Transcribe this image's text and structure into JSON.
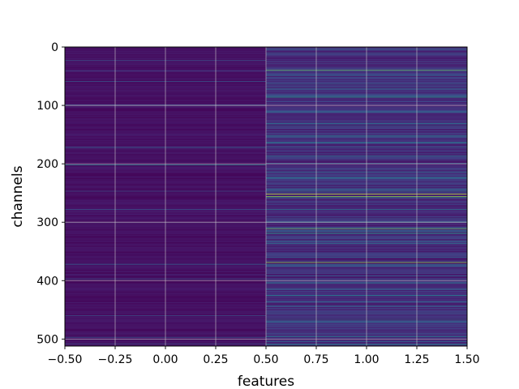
{
  "chart_data": {
    "type": "heatmap",
    "title": "",
    "xlabel": "features",
    "ylabel": "channels",
    "xlim": [
      -0.5,
      1.5
    ],
    "ylim": [
      512,
      0
    ],
    "y_inverted": true,
    "n_rows": 512,
    "n_cols": 2,
    "colormap": "viridis",
    "grid": true,
    "x_ticks": [
      -0.5,
      -0.25,
      0.0,
      0.25,
      0.5,
      0.75,
      1.0,
      1.25,
      1.5
    ],
    "x_tick_labels": [
      "−0.50",
      "−0.25",
      "0.00",
      "0.25",
      "0.50",
      "0.75",
      "1.00",
      "1.25",
      "1.50"
    ],
    "y_ticks": [
      0,
      100,
      200,
      300,
      400,
      500
    ],
    "y_tick_labels": [
      "0",
      "100",
      "200",
      "300",
      "400",
      "500"
    ],
    "columns": [
      {
        "x": 0,
        "base_level": 0.06,
        "bright_rows": [
          {
            "row": 23,
            "level": 0.3
          },
          {
            "row": 41,
            "level": 0.25
          },
          {
            "row": 59,
            "level": 0.35
          },
          {
            "row": 99,
            "level": 0.3
          },
          {
            "row": 172,
            "level": 0.4
          },
          {
            "row": 202,
            "level": 0.55
          },
          {
            "row": 247,
            "level": 0.3
          },
          {
            "row": 278,
            "level": 0.35
          },
          {
            "row": 372,
            "level": 0.4
          },
          {
            "row": 397,
            "level": 0.3
          },
          {
            "row": 460,
            "level": 0.3
          },
          {
            "row": 497,
            "level": 0.35
          },
          {
            "row": 508,
            "level": 0.3
          }
        ]
      },
      {
        "x": 1,
        "base_level": 0.18,
        "bright_rows": [
          {
            "row": 4,
            "level": 0.4
          },
          {
            "row": 10,
            "level": 0.35
          },
          {
            "row": 40,
            "level": 0.85
          },
          {
            "row": 86,
            "level": 0.7
          },
          {
            "row": 154,
            "level": 0.45
          },
          {
            "row": 164,
            "level": 0.5
          },
          {
            "row": 199,
            "level": 0.4
          },
          {
            "row": 214,
            "level": 0.45
          },
          {
            "row": 252,
            "level": 0.95
          },
          {
            "row": 256,
            "level": 0.9
          },
          {
            "row": 258,
            "level": 0.6
          },
          {
            "row": 300,
            "level": 0.6
          },
          {
            "row": 311,
            "level": 0.85
          },
          {
            "row": 319,
            "level": 0.75
          },
          {
            "row": 336,
            "level": 0.5
          },
          {
            "row": 369,
            "level": 0.9
          },
          {
            "row": 404,
            "level": 0.55
          },
          {
            "row": 436,
            "level": 0.45
          },
          {
            "row": 466,
            "level": 0.45
          },
          {
            "row": 496,
            "level": 0.5
          },
          {
            "row": 509,
            "level": 0.55
          }
        ]
      }
    ]
  }
}
